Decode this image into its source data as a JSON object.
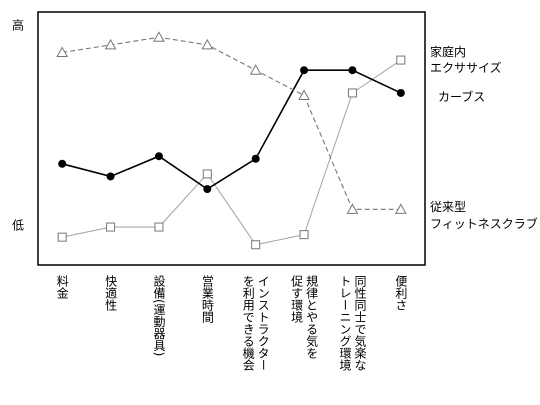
{
  "chart_data": {
    "type": "line",
    "categories": [
      "料金",
      "快適性",
      "設備(運動器具)",
      "営業時間",
      "インストラクター\nを利用できる機会",
      "規律とやる気を\n促す環境",
      "同性同士で気楽な\nトレーニング環境",
      "便利さ"
    ],
    "series": [
      {
        "name": "家庭内\nエクササイズ",
        "color": "#aaaaaa",
        "marker": "square",
        "dash": false,
        "values": [
          11,
          15,
          15,
          36,
          8,
          12,
          68,
          81
        ]
      },
      {
        "name": "カーブス",
        "color": "#000000",
        "marker": "circle",
        "dash": false,
        "values": [
          40,
          35,
          43,
          30,
          42,
          77,
          77,
          68
        ]
      },
      {
        "name": "従来型\nフィットネスクラブ",
        "color": "#777777",
        "marker": "triangle",
        "dash": true,
        "values": [
          84,
          87,
          90,
          87,
          77,
          67,
          22,
          22
        ]
      }
    ],
    "ylim": [
      0,
      100
    ],
    "yticks": [
      {
        "value": 95,
        "label": "高"
      },
      {
        "value": 16,
        "label": "低"
      }
    ],
    "grid": false
  }
}
